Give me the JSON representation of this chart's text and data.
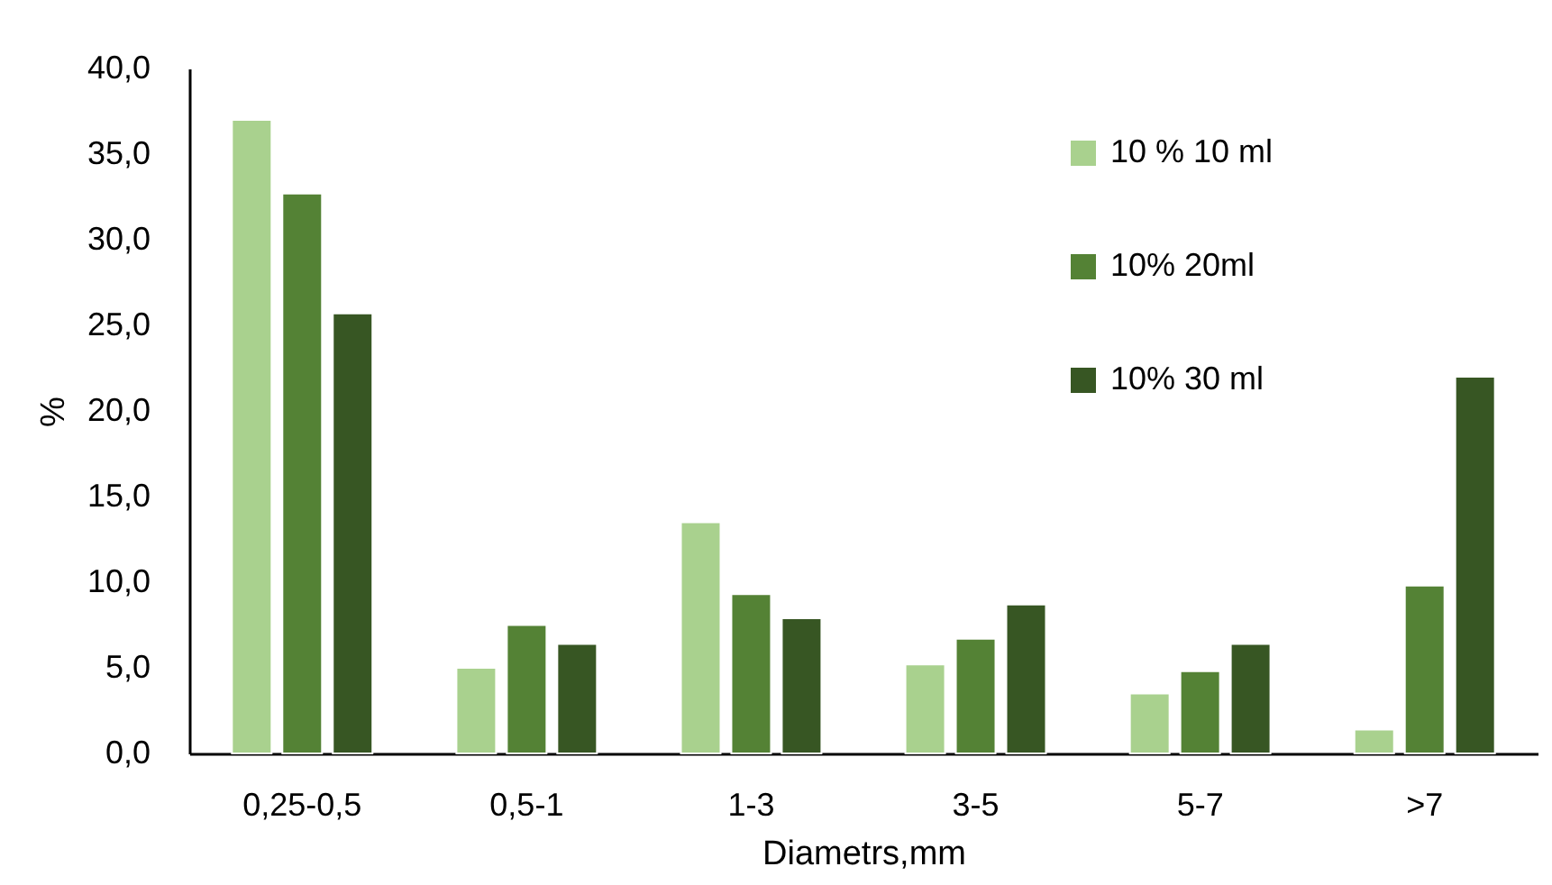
{
  "chart_data": {
    "type": "bar",
    "xlabel": "Diametrs,mm",
    "ylabel": "%",
    "categories": [
      "0,25-0,5",
      "0,5-1",
      "1-3",
      "3-5",
      "5-7",
      ">7"
    ],
    "series": [
      {
        "name": "10 % 10 ml",
        "color": "#a9d18e",
        "values": [
          37.0,
          5.0,
          13.5,
          5.2,
          3.5,
          1.4
        ]
      },
      {
        "name": "10% 20ml",
        "color": "#548235",
        "values": [
          32.7,
          7.5,
          9.3,
          6.7,
          4.8,
          9.8
        ]
      },
      {
        "name": "10% 30 ml",
        "color": "#375623",
        "values": [
          25.7,
          6.4,
          7.9,
          8.7,
          6.4,
          22.0
        ]
      }
    ],
    "ylim": [
      0,
      40
    ],
    "yticks": [
      {
        "value": 0,
        "label": "0,0"
      },
      {
        "value": 5,
        "label": "5,0"
      },
      {
        "value": 10,
        "label": "10,0"
      },
      {
        "value": 15,
        "label": "15,0"
      },
      {
        "value": 20,
        "label": "20,0"
      },
      {
        "value": 25,
        "label": "25,0"
      },
      {
        "value": 30,
        "label": "30,0"
      },
      {
        "value": 35,
        "label": "35,0"
      },
      {
        "value": 40,
        "label": "40,0"
      }
    ],
    "grid": false,
    "legend": "top right"
  }
}
